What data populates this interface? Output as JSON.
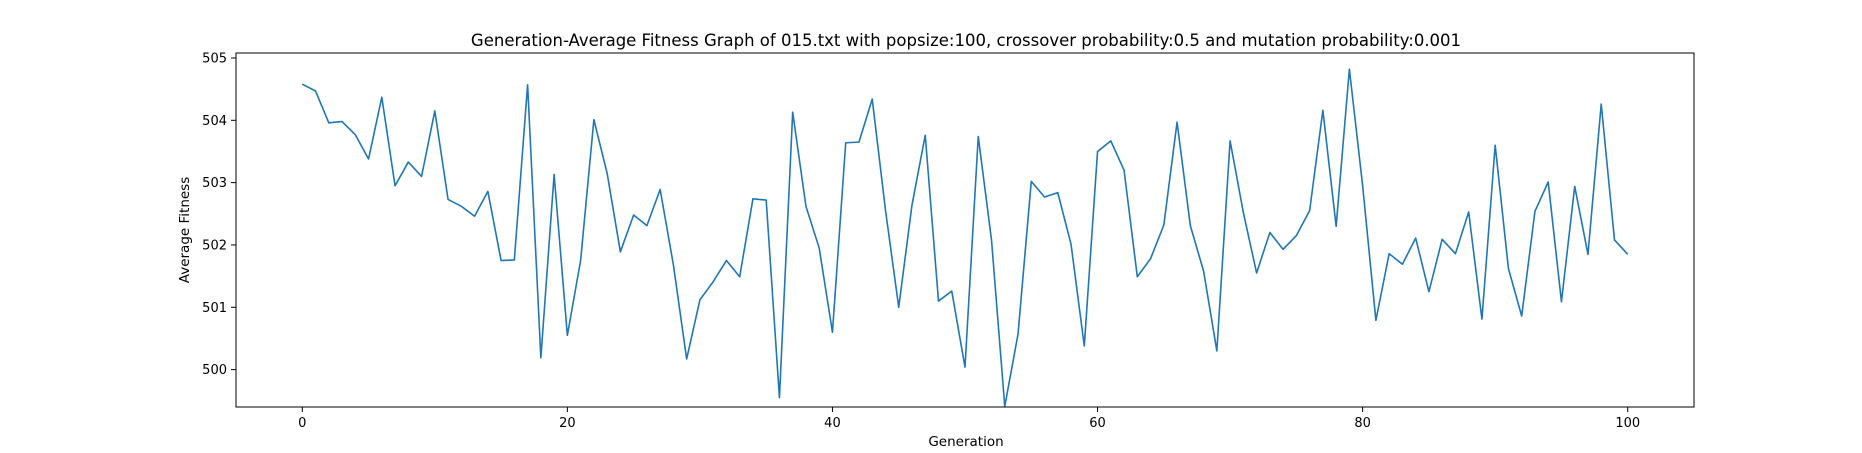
{
  "chart_data": {
    "type": "line",
    "title": "Generation-Average Fitness Graph of 015.txt with popsize:100, crossover probability:0.5 and mutation probability:0.001",
    "xlabel": "Generation",
    "ylabel": "Average Fitness",
    "xlim": [
      -5,
      105
    ],
    "ylim": [
      499.4,
      505.08
    ],
    "xticks": [
      0,
      20,
      40,
      60,
      80,
      100
    ],
    "yticks": [
      500,
      501,
      502,
      503,
      504,
      505
    ],
    "grid": false,
    "color": "#1f77b4",
    "series": [
      {
        "values": [
          504.58,
          504.47,
          503.96,
          503.98,
          503.77,
          503.38,
          504.37,
          502.95,
          503.33,
          503.1,
          504.15,
          502.73,
          502.62,
          502.46,
          502.86,
          501.75,
          501.76,
          504.57,
          500.19,
          503.13,
          500.55,
          501.75,
          504.01,
          503.15,
          501.89,
          502.48,
          502.31,
          502.89,
          501.68,
          500.17,
          501.12,
          501.41,
          501.75,
          501.49,
          502.74,
          502.72,
          499.55,
          504.13,
          502.62,
          501.95,
          500.6,
          503.64,
          503.65,
          504.34,
          502.56,
          501.0,
          502.64,
          503.76,
          501.1,
          501.26,
          500.04,
          503.74,
          502.08,
          499.41,
          500.57,
          503.02,
          502.77,
          502.84,
          502.01,
          500.38,
          503.5,
          503.67,
          503.2,
          501.49,
          501.78,
          502.32,
          503.97,
          502.31,
          501.58,
          500.3,
          503.67,
          502.52,
          501.55,
          502.2,
          501.93,
          502.15,
          502.55,
          504.16,
          502.3,
          504.82,
          502.95,
          500.79,
          501.86,
          501.69,
          502.11,
          501.25,
          502.09,
          501.86,
          502.53,
          500.81,
          503.6,
          501.62,
          500.86,
          502.54,
          503.01,
          501.09,
          502.94,
          501.85,
          504.26,
          502.08,
          501.85
        ]
      }
    ]
  }
}
